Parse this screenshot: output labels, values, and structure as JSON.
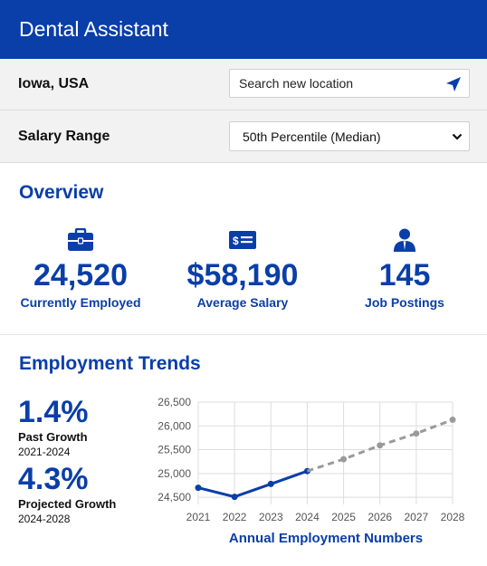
{
  "header": {
    "title": "Dental Assistant"
  },
  "location": {
    "label": "Iowa, USA",
    "search_placeholder": "Search new location",
    "icon": "location-arrow-icon"
  },
  "salary_range": {
    "label": "Salary Range",
    "selected": "50th Percentile (Median)"
  },
  "overview": {
    "title": "Overview",
    "stats": [
      {
        "icon": "briefcase-icon",
        "value": "24,520",
        "caption": "Currently Employed"
      },
      {
        "icon": "dollar-bill-icon",
        "value": "$58,190",
        "caption": "Average Salary"
      },
      {
        "icon": "person-icon",
        "value": "145",
        "caption": "Job Postings"
      }
    ]
  },
  "trends": {
    "title": "Employment Trends",
    "past": {
      "pct": "1.4%",
      "label": "Past Growth",
      "years": "2021-2024"
    },
    "projected": {
      "pct": "4.3%",
      "label": "Projected Growth",
      "years": "2024-2028"
    }
  },
  "colors": {
    "brand": "#0a3ea8",
    "projection": "#9a9a9a"
  },
  "chart_data": {
    "type": "line",
    "title": "Annual Employment Numbers",
    "x": [
      "2021",
      "2022",
      "2023",
      "2024",
      "2025",
      "2026",
      "2027",
      "2028"
    ],
    "y_ticks": [
      "26,500",
      "26,000",
      "25,500",
      "25,000",
      "24,500"
    ],
    "ylim": [
      24350,
      26500
    ],
    "grid": true,
    "series": [
      {
        "x": [
          "2021",
          "2022",
          "2023",
          "2024"
        ],
        "values": [
          24700,
          24510,
          24780,
          25050
        ],
        "style": "solid"
      },
      {
        "x": [
          "2024",
          "2025",
          "2026",
          "2027",
          "2028"
        ],
        "values": [
          25050,
          25300,
          25590,
          25840,
          26130
        ],
        "style": "dashed"
      }
    ]
  }
}
